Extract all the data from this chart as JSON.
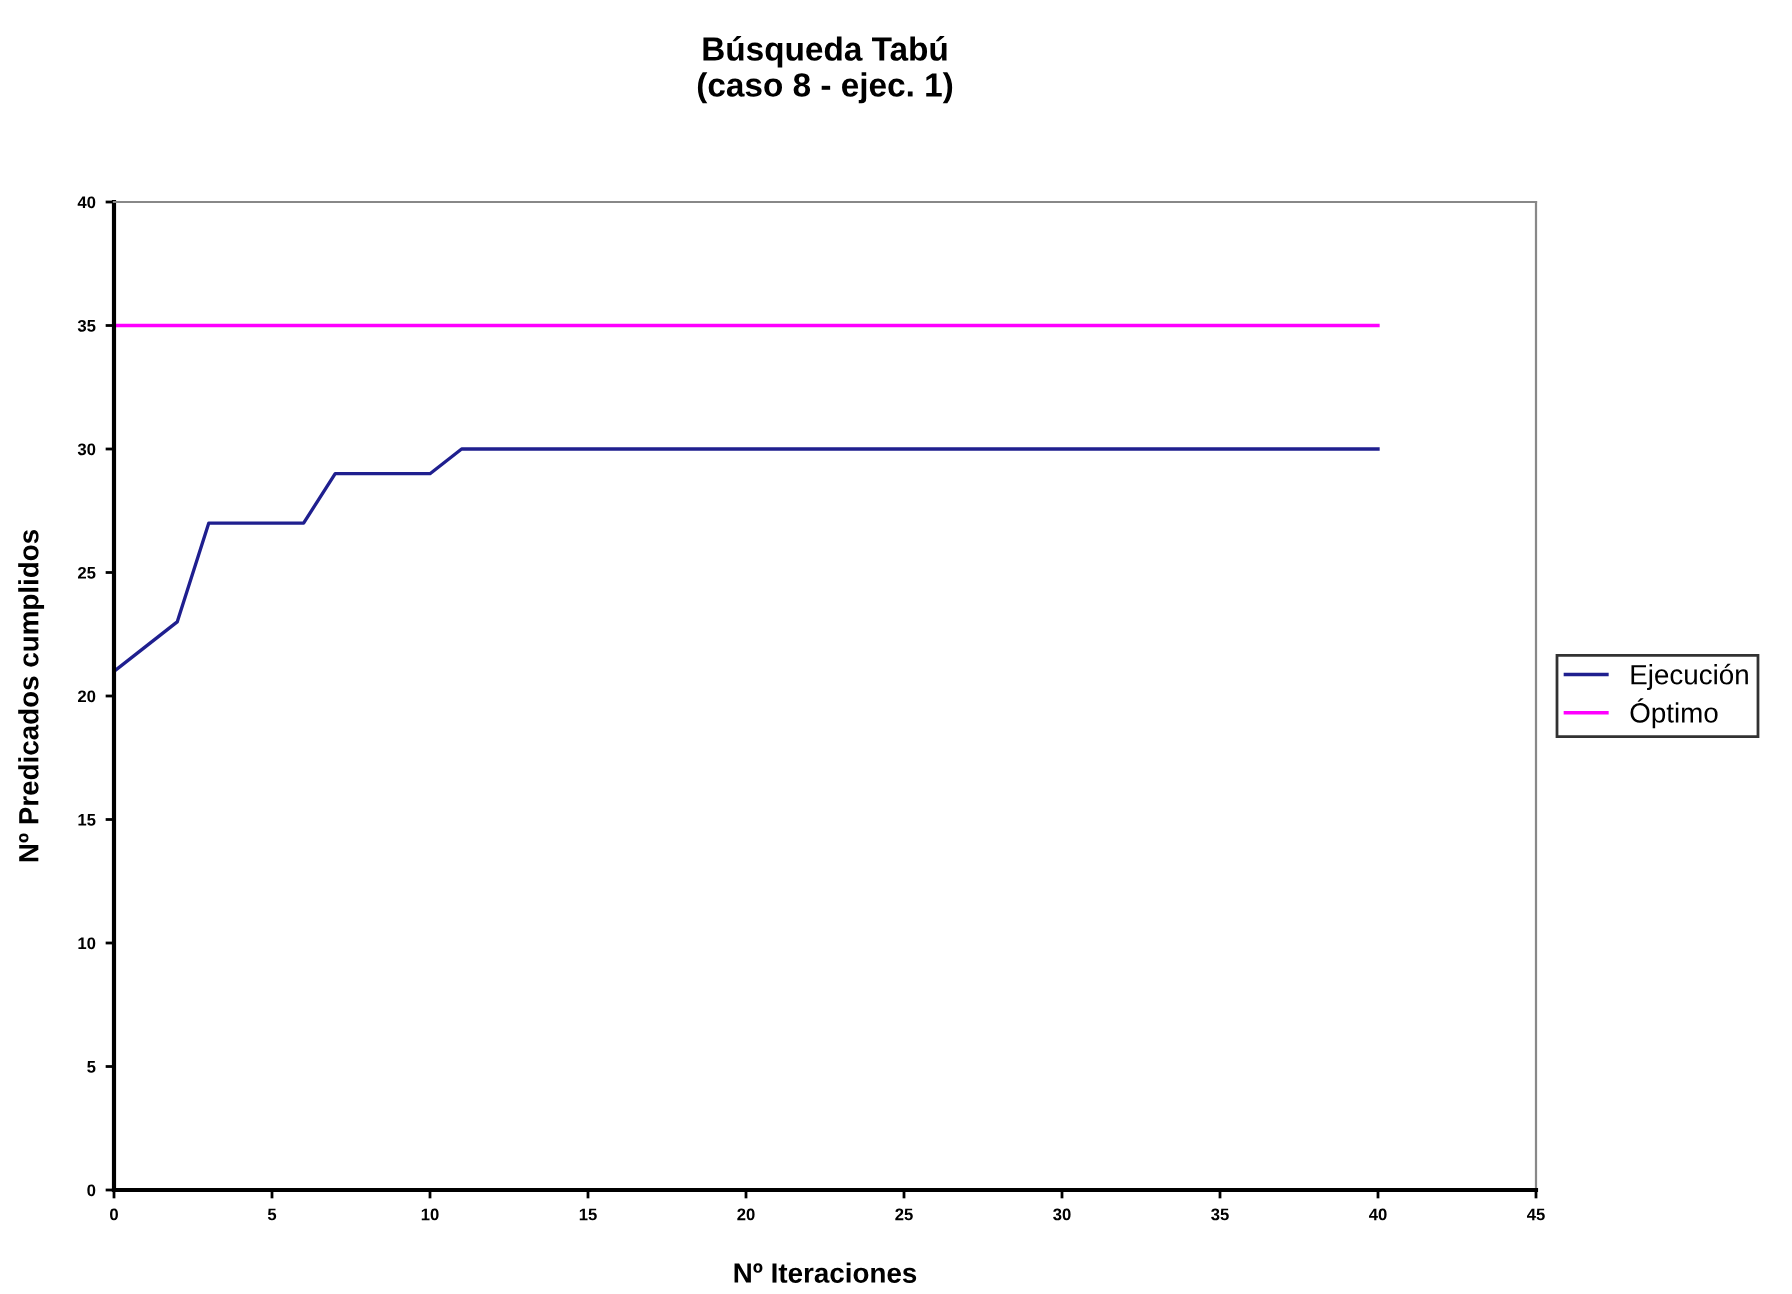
{
  "chart_data": {
    "type": "line",
    "title": "Búsqueda Tabú\n(caso 8 - ejec. 1)",
    "xlabel": "Nº Iteraciones",
    "ylabel": "Nº Predicados cumplidos",
    "series": [
      {
        "name": "Ejecución",
        "color": "#1f1f8f",
        "x": [
          0,
          1,
          2,
          3,
          6,
          7,
          10,
          11,
          40
        ],
        "values": [
          21,
          22,
          23,
          27,
          27,
          29,
          29,
          30,
          30
        ]
      },
      {
        "name": "Óptimo",
        "color": "#ff00ff",
        "x": [
          0,
          40
        ],
        "values": [
          35,
          35
        ]
      }
    ],
    "xlim": [
      0,
      45
    ],
    "xticks": [
      0,
      5,
      10,
      15,
      20,
      25,
      30,
      35,
      40,
      45
    ],
    "ylim": [
      0,
      40
    ],
    "yticks": [
      0,
      5,
      10,
      15,
      20,
      25,
      30,
      35,
      40
    ],
    "grid": false,
    "legend": "right",
    "marker": "none",
    "line_style": "solid"
  }
}
